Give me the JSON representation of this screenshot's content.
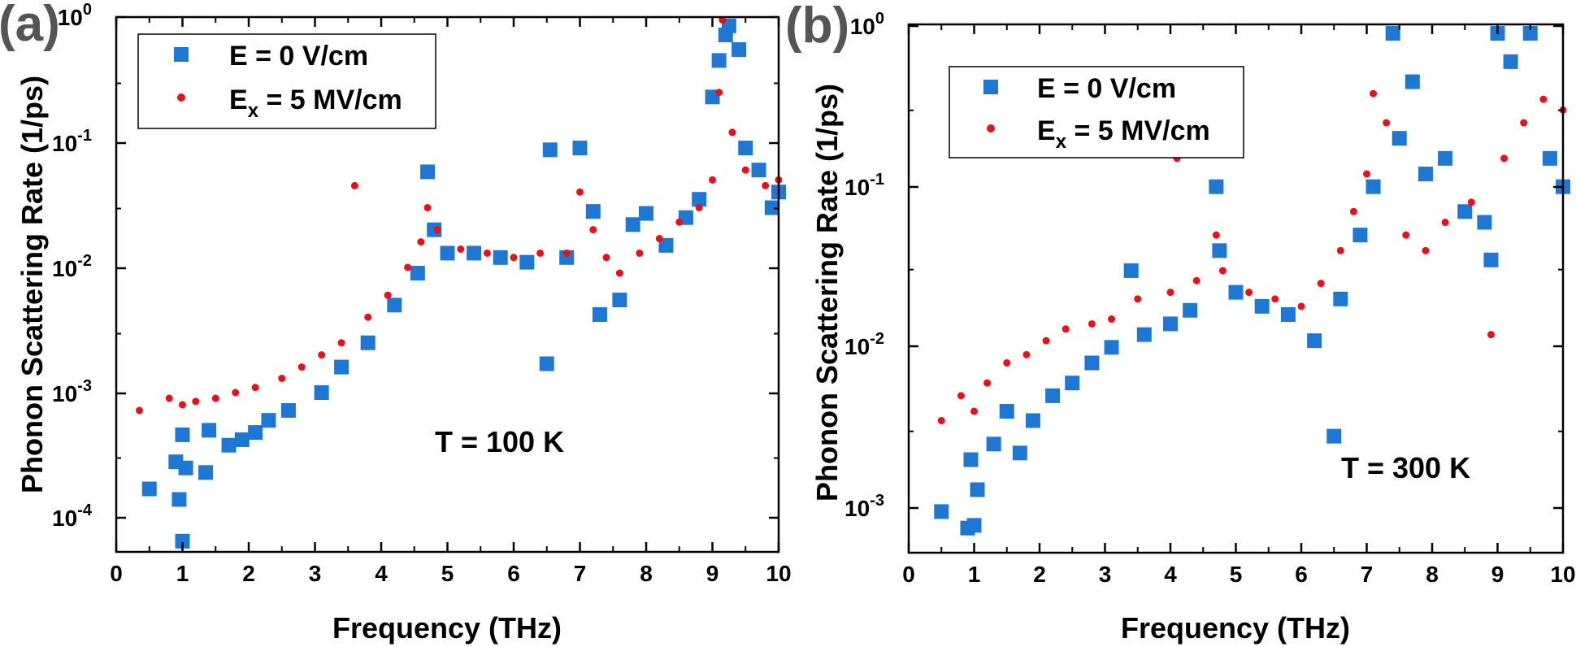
{
  "figure": {
    "panels": [
      {
        "letter": "(a)",
        "annotation": "T = 100 K",
        "title_x": "Frequency (THz)",
        "title_y": "Phonon Scattering Rate (1/ps)",
        "legend": [
          {
            "label_main": "E = 0 V/cm",
            "label_pre": "",
            "label_sub": "",
            "label_post": ""
          },
          {
            "label_main": "",
            "label_pre": "E",
            "label_sub": "x",
            "label_post": " = 5 MV/cm"
          }
        ],
        "x_ticks": [
          "0",
          "1",
          "2",
          "3",
          "4",
          "5",
          "6",
          "7",
          "8",
          "9",
          "10"
        ],
        "y_ticks": [
          {
            "base": "10",
            "exp": "-4"
          },
          {
            "base": "10",
            "exp": "-3"
          },
          {
            "base": "10",
            "exp": "-2"
          },
          {
            "base": "10",
            "exp": "-1"
          },
          {
            "base": "10",
            "exp": "0"
          }
        ]
      },
      {
        "letter": "(b)",
        "annotation": "T = 300 K",
        "title_x": "Frequency (THz)",
        "title_y": "Phonon Scattering Rate (1/ps)",
        "legend": [
          {
            "label_main": "E = 0 V/cm",
            "label_pre": "",
            "label_sub": "",
            "label_post": ""
          },
          {
            "label_main": "",
            "label_pre": "E",
            "label_sub": "x",
            "label_post": " = 5 MV/cm"
          }
        ],
        "x_ticks": [
          "0",
          "1",
          "2",
          "3",
          "4",
          "5",
          "6",
          "7",
          "8",
          "9",
          "10"
        ],
        "y_ticks": [
          {
            "base": "10",
            "exp": "-3"
          },
          {
            "base": "10",
            "exp": "-2"
          },
          {
            "base": "10",
            "exp": "-1"
          },
          {
            "base": "10",
            "exp": "0"
          }
        ]
      }
    ]
  },
  "chart_data": [
    {
      "type": "scatter",
      "title": "(a) T = 100 K",
      "xlabel": "Frequency (THz)",
      "ylabel": "Phonon Scattering Rate (1/ps)",
      "xlim": [
        0,
        10
      ],
      "ylim": [
        5e-05,
        1
      ],
      "yscale": "log",
      "legend_position": "top-left",
      "series": [
        {
          "name": "E = 0 V/cm",
          "marker": "square",
          "color": "#1f77d4",
          "points": [
            [
              0.5,
              0.00017
            ],
            [
              0.9,
              0.00028
            ],
            [
              0.95,
              0.00014
            ],
            [
              1.0,
              6.5e-05
            ],
            [
              1.0,
              0.00046
            ],
            [
              1.05,
              0.00025
            ],
            [
              1.35,
              0.00023
            ],
            [
              1.4,
              0.0005
            ],
            [
              1.7,
              0.00038
            ],
            [
              1.9,
              0.00042
            ],
            [
              2.1,
              0.00048
            ],
            [
              2.3,
              0.0006
            ],
            [
              2.6,
              0.00072
            ],
            [
              3.1,
              0.001
            ],
            [
              3.4,
              0.0016
            ],
            [
              3.8,
              0.0025
            ],
            [
              4.2,
              0.005
            ],
            [
              4.55,
              0.009
            ],
            [
              4.7,
              0.058
            ],
            [
              4.8,
              0.02
            ],
            [
              5.0,
              0.013
            ],
            [
              5.4,
              0.013
            ],
            [
              5.8,
              0.012
            ],
            [
              6.2,
              0.011
            ],
            [
              6.5,
              0.0017
            ],
            [
              6.55,
              0.087
            ],
            [
              6.8,
              0.012
            ],
            [
              7.0,
              0.09
            ],
            [
              7.2,
              0.028
            ],
            [
              7.3,
              0.0042
            ],
            [
              7.6,
              0.0055
            ],
            [
              7.8,
              0.022
            ],
            [
              8.0,
              0.027
            ],
            [
              8.3,
              0.015
            ],
            [
              8.6,
              0.025
            ],
            [
              8.8,
              0.035
            ],
            [
              9.0,
              0.23
            ],
            [
              9.1,
              0.45
            ],
            [
              9.2,
              0.72
            ],
            [
              9.25,
              0.85
            ],
            [
              9.4,
              0.55
            ],
            [
              9.5,
              0.09
            ],
            [
              9.7,
              0.06
            ],
            [
              9.9,
              0.03
            ],
            [
              10.0,
              0.04
            ]
          ]
        },
        {
          "name": "Ex = 5 MV/cm",
          "marker": "circle",
          "color": "#e8101a",
          "points": [
            [
              0.35,
              0.00072
            ],
            [
              0.8,
              0.0009
            ],
            [
              1.0,
              0.0008
            ],
            [
              1.2,
              0.00085
            ],
            [
              1.5,
              0.0009
            ],
            [
              1.8,
              0.001
            ],
            [
              2.1,
              0.0011
            ],
            [
              2.5,
              0.0013
            ],
            [
              2.8,
              0.0016
            ],
            [
              3.1,
              0.002
            ],
            [
              3.4,
              0.0025
            ],
            [
              3.6,
              0.045
            ],
            [
              3.8,
              0.004
            ],
            [
              4.1,
              0.006
            ],
            [
              4.4,
              0.01
            ],
            [
              4.6,
              0.016
            ],
            [
              4.7,
              0.03
            ],
            [
              4.85,
              0.02
            ],
            [
              5.2,
              0.014
            ],
            [
              5.6,
              0.013
            ],
            [
              6.0,
              0.012
            ],
            [
              6.4,
              0.013
            ],
            [
              6.8,
              0.013
            ],
            [
              7.0,
              0.04
            ],
            [
              7.2,
              0.02
            ],
            [
              7.4,
              0.012
            ],
            [
              7.6,
              0.009
            ],
            [
              7.9,
              0.013
            ],
            [
              8.2,
              0.017
            ],
            [
              8.5,
              0.023
            ],
            [
              8.8,
              0.03
            ],
            [
              9.0,
              0.05
            ],
            [
              9.1,
              0.25
            ],
            [
              9.15,
              0.95
            ],
            [
              9.3,
              0.12
            ],
            [
              9.5,
              0.06
            ],
            [
              9.8,
              0.045
            ],
            [
              10.0,
              0.05
            ]
          ]
        }
      ]
    },
    {
      "type": "scatter",
      "title": "(b) T = 300 K",
      "xlabel": "Frequency (THz)",
      "ylabel": "Phonon Scattering Rate (1/ps)",
      "xlim": [
        0,
        10
      ],
      "ylim": [
        0.0005,
        1
      ],
      "yscale": "log",
      "legend_position": "top-left",
      "series": [
        {
          "name": "E = 0 V/cm",
          "marker": "square",
          "color": "#1f77d4",
          "points": [
            [
              0.5,
              0.00095
            ],
            [
              0.9,
              0.00075
            ],
            [
              1.0,
              0.00078
            ],
            [
              0.95,
              0.002
            ],
            [
              1.05,
              0.0013
            ],
            [
              1.3,
              0.0025
            ],
            [
              1.5,
              0.004
            ],
            [
              1.7,
              0.0022
            ],
            [
              1.9,
              0.0035
            ],
            [
              2.2,
              0.005
            ],
            [
              2.5,
              0.006
            ],
            [
              2.8,
              0.008
            ],
            [
              3.1,
              0.01
            ],
            [
              3.4,
              0.03
            ],
            [
              3.6,
              0.012
            ],
            [
              4.0,
              0.014
            ],
            [
              4.3,
              0.017
            ],
            [
              4.7,
              0.1
            ],
            [
              4.75,
              0.04
            ],
            [
              5.0,
              0.022
            ],
            [
              5.4,
              0.018
            ],
            [
              5.8,
              0.016
            ],
            [
              6.2,
              0.011
            ],
            [
              6.5,
              0.0028
            ],
            [
              6.6,
              0.02
            ],
            [
              6.9,
              0.05
            ],
            [
              7.1,
              0.1
            ],
            [
              7.4,
              0.9
            ],
            [
              7.5,
              0.2
            ],
            [
              7.7,
              0.45
            ],
            [
              7.9,
              0.12
            ],
            [
              8.2,
              0.15
            ],
            [
              8.5,
              0.07
            ],
            [
              8.8,
              0.06
            ],
            [
              8.9,
              0.035
            ],
            [
              9.0,
              0.9
            ],
            [
              9.2,
              0.6
            ],
            [
              9.5,
              0.9
            ],
            [
              9.8,
              0.15
            ],
            [
              10.0,
              0.1
            ]
          ]
        },
        {
          "name": "Ex = 5 MV/cm",
          "marker": "circle",
          "color": "#e8101a",
          "points": [
            [
              0.5,
              0.0035
            ],
            [
              0.8,
              0.005
            ],
            [
              1.0,
              0.004
            ],
            [
              1.2,
              0.006
            ],
            [
              1.5,
              0.008
            ],
            [
              1.8,
              0.009
            ],
            [
              2.1,
              0.011
            ],
            [
              2.4,
              0.013
            ],
            [
              2.8,
              0.014
            ],
            [
              3.1,
              0.015
            ],
            [
              3.5,
              0.02
            ],
            [
              4.0,
              0.022
            ],
            [
              4.1,
              0.15
            ],
            [
              4.4,
              0.026
            ],
            [
              4.7,
              0.05
            ],
            [
              4.8,
              0.03
            ],
            [
              5.2,
              0.022
            ],
            [
              5.6,
              0.02
            ],
            [
              6.0,
              0.018
            ],
            [
              6.3,
              0.025
            ],
            [
              6.6,
              0.04
            ],
            [
              6.8,
              0.07
            ],
            [
              7.0,
              0.12
            ],
            [
              7.1,
              0.38
            ],
            [
              7.3,
              0.25
            ],
            [
              7.6,
              0.05
            ],
            [
              7.9,
              0.04
            ],
            [
              8.2,
              0.06
            ],
            [
              8.6,
              0.08
            ],
            [
              8.9,
              0.012
            ],
            [
              9.1,
              0.15
            ],
            [
              9.4,
              0.25
            ],
            [
              9.7,
              0.35
            ],
            [
              10.0,
              0.3
            ]
          ]
        }
      ]
    }
  ]
}
